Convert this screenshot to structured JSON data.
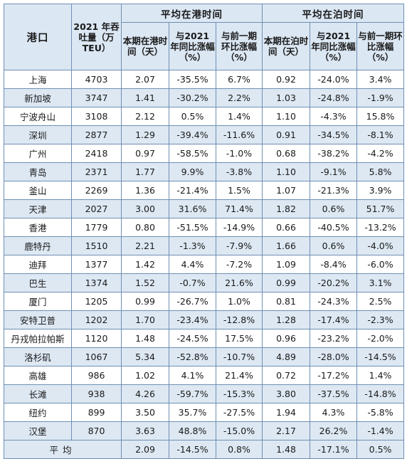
{
  "headers": {
    "port": "港口",
    "throughput": "2021 年吞吐量（万 TEU）",
    "group_port_time": "平均在港时间",
    "group_berth_time": "平均在泊时间",
    "cur_port": "本期在港时间（天）",
    "yoy": "与2021 年同比涨幅（%）",
    "mom": "与前一期环比涨幅（%）",
    "cur_berth": "本期在泊时间（天）"
  },
  "rows": [
    {
      "port": "上海",
      "teu": "4703",
      "port_time": "2.07",
      "port_yoy": "-35.5%",
      "port_mom": "6.7%",
      "berth_time": "0.92",
      "berth_yoy": "-24.0%",
      "berth_mom": "3.4%"
    },
    {
      "port": "新加坡",
      "teu": "3747",
      "port_time": "1.41",
      "port_yoy": "-30.2%",
      "port_mom": "2.2%",
      "berth_time": "1.03",
      "berth_yoy": "-24.8%",
      "berth_mom": "-1.9%"
    },
    {
      "port": "宁波舟山",
      "teu": "3108",
      "port_time": "2.12",
      "port_yoy": "0.5%",
      "port_mom": "1.4%",
      "berth_time": "1.10",
      "berth_yoy": "-4.3%",
      "berth_mom": "15.8%"
    },
    {
      "port": "深圳",
      "teu": "2877",
      "port_time": "1.29",
      "port_yoy": "-39.4%",
      "port_mom": "-11.6%",
      "berth_time": "0.91",
      "berth_yoy": "-34.5%",
      "berth_mom": "-8.1%"
    },
    {
      "port": "广州",
      "teu": "2418",
      "port_time": "0.97",
      "port_yoy": "-58.5%",
      "port_mom": "-1.0%",
      "berth_time": "0.68",
      "berth_yoy": "-38.2%",
      "berth_mom": "-4.2%"
    },
    {
      "port": "青岛",
      "teu": "2371",
      "port_time": "1.77",
      "port_yoy": "9.9%",
      "port_mom": "-3.8%",
      "berth_time": "1.10",
      "berth_yoy": "-9.1%",
      "berth_mom": "5.8%"
    },
    {
      "port": "釜山",
      "teu": "2269",
      "port_time": "1.36",
      "port_yoy": "-21.4%",
      "port_mom": "1.5%",
      "berth_time": "1.07",
      "berth_yoy": "-21.3%",
      "berth_mom": "3.9%"
    },
    {
      "port": "天津",
      "teu": "2027",
      "port_time": "3.00",
      "port_yoy": "31.6%",
      "port_mom": "71.4%",
      "berth_time": "1.82",
      "berth_yoy": "0.6%",
      "berth_mom": "51.7%"
    },
    {
      "port": "香港",
      "teu": "1779",
      "port_time": "0.80",
      "port_yoy": "-51.5%",
      "port_mom": "-14.9%",
      "berth_time": "0.66",
      "berth_yoy": "-40.5%",
      "berth_mom": "-13.2%"
    },
    {
      "port": "鹿特丹",
      "teu": "1510",
      "port_time": "2.21",
      "port_yoy": "-1.3%",
      "port_mom": "-7.9%",
      "berth_time": "1.66",
      "berth_yoy": "0.6%",
      "berth_mom": "-4.0%"
    },
    {
      "port": "迪拜",
      "teu": "1377",
      "port_time": "1.42",
      "port_yoy": "4.4%",
      "port_mom": "-7.2%",
      "berth_time": "1.09",
      "berth_yoy": "-8.4%",
      "berth_mom": "-6.0%"
    },
    {
      "port": "巴生",
      "teu": "1374",
      "port_time": "1.52",
      "port_yoy": "-0.7%",
      "port_mom": "21.6%",
      "berth_time": "0.99",
      "berth_yoy": "-20.2%",
      "berth_mom": "3.1%"
    },
    {
      "port": "厦门",
      "teu": "1205",
      "port_time": "0.99",
      "port_yoy": "-26.7%",
      "port_mom": "1.0%",
      "berth_time": "0.81",
      "berth_yoy": "-24.3%",
      "berth_mom": "2.5%"
    },
    {
      "port": "安特卫普",
      "teu": "1202",
      "port_time": "1.70",
      "port_yoy": "-23.4%",
      "port_mom": "-12.8%",
      "berth_time": "1.28",
      "berth_yoy": "-17.4%",
      "berth_mom": "-2.3%"
    },
    {
      "port": "丹戎帕拉帕斯",
      "teu": "1120",
      "port_time": "1.48",
      "port_yoy": "-24.5%",
      "port_mom": "17.5%",
      "berth_time": "0.96",
      "berth_yoy": "-23.2%",
      "berth_mom": "-2.0%"
    },
    {
      "port": "洛杉矶",
      "teu": "1067",
      "port_time": "5.34",
      "port_yoy": "-52.8%",
      "port_mom": "-10.7%",
      "berth_time": "4.89",
      "berth_yoy": "-28.0%",
      "berth_mom": "-14.5%"
    },
    {
      "port": "高雄",
      "teu": "986",
      "port_time": "1.02",
      "port_yoy": "4.1%",
      "port_mom": "21.4%",
      "berth_time": "0.72",
      "berth_yoy": "-17.2%",
      "berth_mom": "1.4%"
    },
    {
      "port": "长滩",
      "teu": "938",
      "port_time": "4.26",
      "port_yoy": "-59.7%",
      "port_mom": "-15.3%",
      "berth_time": "3.80",
      "berth_yoy": "-37.5%",
      "berth_mom": "-14.8%"
    },
    {
      "port": "纽约",
      "teu": "899",
      "port_time": "3.50",
      "port_yoy": "35.7%",
      "port_mom": "-27.5%",
      "berth_time": "1.94",
      "berth_yoy": "4.3%",
      "berth_mom": "-5.8%"
    },
    {
      "port": "汉堡",
      "teu": "870",
      "port_time": "3.63",
      "port_yoy": "48.8%",
      "port_mom": "-15.0%",
      "berth_time": "2.17",
      "berth_yoy": "26.2%",
      "berth_mom": "-1.4%"
    }
  ],
  "average": {
    "label": "平均",
    "port_time": "2.09",
    "port_yoy": "-14.5%",
    "port_mom": "0.8%",
    "berth_time": "1.48",
    "berth_yoy": "-17.1%",
    "berth_mom": "0.5%"
  }
}
